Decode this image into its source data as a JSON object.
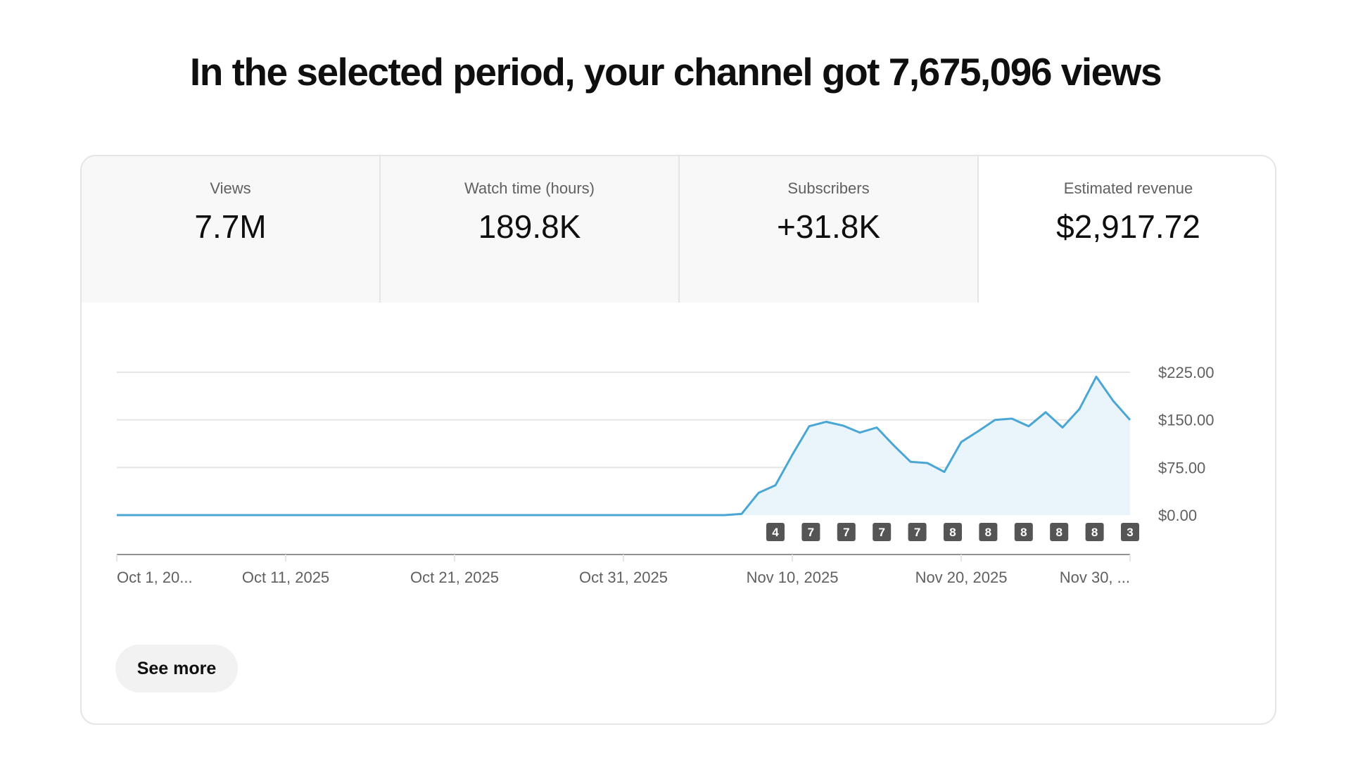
{
  "title": "In the selected period, your channel got 7,675,096 views",
  "tabs": [
    {
      "label": "Views",
      "value": "7.7M"
    },
    {
      "label": "Watch time (hours)",
      "value": "189.8K"
    },
    {
      "label": "Subscribers",
      "value": "+31.8K"
    },
    {
      "label": "Estimated revenue",
      "value": "$2,917.72"
    }
  ],
  "selected_tab": "Estimated revenue",
  "see_more_label": "See more",
  "chart_data": {
    "type": "area",
    "series": [
      {
        "values": [
          0,
          0,
          0,
          0,
          0,
          0,
          0,
          0,
          0,
          0,
          0,
          0,
          0,
          0,
          0,
          0,
          0,
          0,
          0,
          0,
          0,
          0,
          0,
          0,
          0,
          0,
          0,
          0,
          0,
          0,
          0,
          0,
          0,
          0,
          0,
          0,
          0,
          2,
          35,
          47,
          95,
          140,
          147,
          141,
          130,
          138,
          110,
          84,
          82,
          68,
          115,
          132,
          150,
          152,
          140,
          162,
          138,
          167,
          218,
          180,
          150
        ]
      }
    ],
    "x_tick_labels": [
      "Oct 1, 20...",
      "Oct 11, 2025",
      "Oct 21, 2025",
      "Oct 31, 2025",
      "Nov 10, 2025",
      "Nov 20, 2025",
      "Nov 30, ..."
    ],
    "y_tick_labels": [
      "$225.00",
      "$150.00",
      "$75.00",
      "$0.00"
    ],
    "y_ticks": [
      225,
      150,
      75,
      0
    ],
    "ylim": [
      0,
      225
    ],
    "x_count": 61,
    "markers": [
      "4",
      "7",
      "7",
      "7",
      "7",
      "8",
      "8",
      "8",
      "8",
      "8",
      "3"
    ],
    "grid": true,
    "y_axis_position": "right",
    "colors": {
      "line": "#4aa6d4",
      "fill": "#eaf4fb",
      "grid": "#e5e5e5",
      "axis": "#909090",
      "marker": "#555555"
    }
  }
}
